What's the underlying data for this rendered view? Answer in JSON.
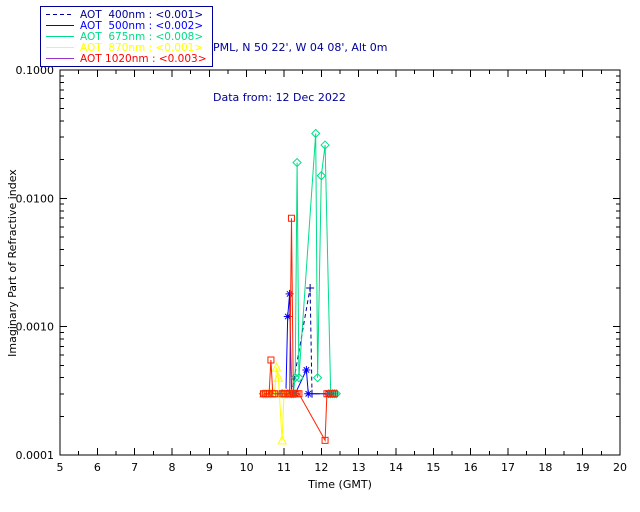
{
  "header": {
    "line1": "PML, N 50 22', W 04 08', Alt 0m",
    "line2": "Data from: 12 Dec 2022",
    "text_color": "#000099"
  },
  "legend": {
    "border_color": "#000099"
  },
  "chart_data": {
    "type": "line",
    "title": "",
    "xlabel": "Time (GMT)",
    "ylabel": "Imaginary Part of Refractive index",
    "xlim": [
      5,
      20
    ],
    "x_tick_step": 1,
    "x_minor_step": 0.5,
    "ylim": [
      0.0001,
      0.1
    ],
    "yscale": "log",
    "y_major_ticks": [
      0.0001,
      0.001,
      0.01,
      0.1
    ],
    "y_tick_labels": [
      "0.0001",
      "0.0010",
      "0.0100",
      "0.1000"
    ],
    "grid": false,
    "legend_position": "top-left",
    "axis_color": "#000000",
    "series": [
      {
        "name": "AOT 400nm",
        "legend_label": "AOT  400nm : <0.001>",
        "legend_value": "<0.001>",
        "color": "#000099",
        "marker": "plus",
        "dash": "4,3",
        "points": [
          [
            10.45,
            0.0003
          ],
          [
            10.5,
            0.0003
          ],
          [
            10.55,
            0.0003
          ],
          [
            10.6,
            0.0003
          ],
          [
            10.65,
            0.0003
          ],
          [
            10.95,
            0.0003
          ],
          [
            11.0,
            0.0003
          ],
          [
            11.05,
            0.0003
          ],
          [
            11.1,
            0.0003
          ],
          [
            11.15,
            0.0003
          ],
          [
            11.2,
            0.0003
          ],
          [
            11.7,
            0.002
          ],
          [
            11.75,
            0.0003
          ],
          [
            12.2,
            0.0003
          ],
          [
            12.25,
            0.0003
          ]
        ]
      },
      {
        "name": "AOT 500nm",
        "legend_label": "AOT  500nm : <0.002>",
        "legend_value": "<0.002>",
        "color": "#0000ff",
        "marker": "asterisk",
        "points": [
          [
            10.45,
            0.0003
          ],
          [
            10.5,
            0.0003
          ],
          [
            10.55,
            0.0003
          ],
          [
            10.6,
            0.0003
          ],
          [
            10.65,
            0.0003
          ],
          [
            10.95,
            0.0003
          ],
          [
            11.0,
            0.0003
          ],
          [
            11.05,
            0.0003
          ],
          [
            11.1,
            0.0012
          ],
          [
            11.15,
            0.0018
          ],
          [
            11.2,
            0.0003
          ],
          [
            11.25,
            0.0003
          ],
          [
            11.3,
            0.0003
          ],
          [
            11.6,
            0.00046
          ],
          [
            11.65,
            0.0003
          ],
          [
            12.2,
            0.0003
          ],
          [
            12.25,
            0.0003
          ],
          [
            12.3,
            0.0003
          ]
        ]
      },
      {
        "name": "AOT 675nm",
        "legend_label": "AOT  675nm : <0.008>",
        "legend_value": "<0.008>",
        "color": "#00dd88",
        "marker": "diamond",
        "points": [
          [
            10.45,
            0.0003
          ],
          [
            10.5,
            0.0003
          ],
          [
            10.55,
            0.0003
          ],
          [
            10.6,
            0.0003
          ],
          [
            10.65,
            0.0003
          ],
          [
            10.95,
            0.0003
          ],
          [
            11.0,
            0.0003
          ],
          [
            11.05,
            0.0003
          ],
          [
            11.1,
            0.0003
          ],
          [
            11.15,
            0.0003
          ],
          [
            11.2,
            0.0003
          ],
          [
            11.25,
            0.0003
          ],
          [
            11.3,
            0.0004
          ],
          [
            11.35,
            0.019
          ],
          [
            11.4,
            0.0004
          ],
          [
            11.85,
            0.032
          ],
          [
            11.9,
            0.0004
          ],
          [
            12.0,
            0.015
          ],
          [
            12.1,
            0.026
          ],
          [
            12.25,
            0.0003
          ],
          [
            12.3,
            0.0003
          ],
          [
            12.35,
            0.0003
          ],
          [
            12.4,
            0.0003
          ]
        ]
      },
      {
        "name": "AOT 870nm",
        "legend_label": "AOT  870nm : <0.001>",
        "legend_value": "<0.001>",
        "color": "#ffff00",
        "marker": "triangle",
        "points": [
          [
            10.45,
            0.0003
          ],
          [
            10.5,
            0.0003
          ],
          [
            10.55,
            0.0003
          ],
          [
            10.6,
            0.0003
          ],
          [
            10.65,
            0.0003
          ],
          [
            10.7,
            0.0003
          ],
          [
            10.75,
            0.0003
          ],
          [
            10.8,
            0.00048
          ],
          [
            10.85,
            0.0004
          ],
          [
            10.95,
            0.00013
          ],
          [
            11.0,
            0.0003
          ],
          [
            11.05,
            0.0003
          ]
        ]
      },
      {
        "name": "AOT 1020nm",
        "legend_label": "AOT 1020nm : <0.003>",
        "legend_value": "<0.003>",
        "color": "#ff2200",
        "legend_line_color": "#9933cc",
        "text_color": "#ff0000",
        "marker": "square",
        "points": [
          [
            10.45,
            0.0003
          ],
          [
            10.5,
            0.0003
          ],
          [
            10.55,
            0.0003
          ],
          [
            10.6,
            0.0003
          ],
          [
            10.65,
            0.00055
          ],
          [
            10.7,
            0.0003
          ],
          [
            10.75,
            0.0003
          ],
          [
            10.95,
            0.0003
          ],
          [
            11.0,
            0.0003
          ],
          [
            11.05,
            0.0003
          ],
          [
            11.1,
            0.0003
          ],
          [
            11.15,
            0.0003
          ],
          [
            11.2,
            0.007
          ],
          [
            11.25,
            0.0003
          ],
          [
            11.3,
            0.0003
          ],
          [
            11.35,
            0.0003
          ],
          [
            11.4,
            0.0003
          ],
          [
            12.1,
            0.00013
          ],
          [
            12.15,
            0.0003
          ],
          [
            12.2,
            0.0003
          ],
          [
            12.25,
            0.0003
          ],
          [
            12.3,
            0.0003
          ],
          [
            12.35,
            0.0003
          ]
        ]
      }
    ]
  }
}
